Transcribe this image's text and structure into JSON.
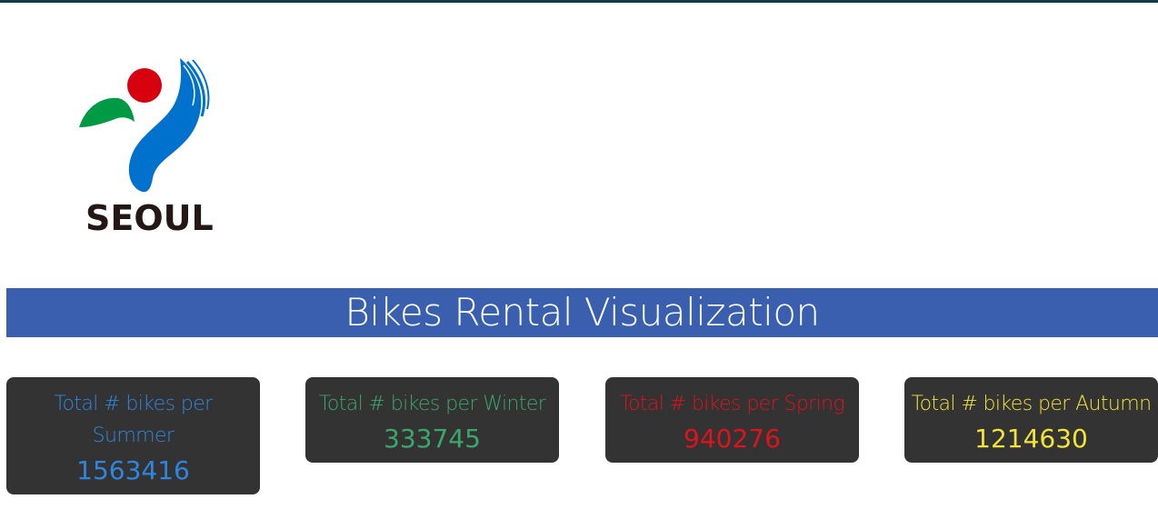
{
  "logo": {
    "text": "SEOUL",
    "colors": {
      "red": "#d7000f",
      "green": "#009a44",
      "blue": "#0072ce",
      "text": "#231815"
    }
  },
  "header": {
    "title": "Bikes Rental Visualization",
    "bar_color": "#3a5fae"
  },
  "cards": [
    {
      "label": "Total # bikes per Summer",
      "value": "1563416",
      "color": "#2e86de"
    },
    {
      "label": "Total # bikes per Winter",
      "value": "333745",
      "color": "#3aa76d"
    },
    {
      "label": "Total # bikes per Spring",
      "value": "940276",
      "color": "#e0121c"
    },
    {
      "label": "Total # bikes per Autumn",
      "value": "1214630",
      "color": "#f2e33a"
    }
  ]
}
